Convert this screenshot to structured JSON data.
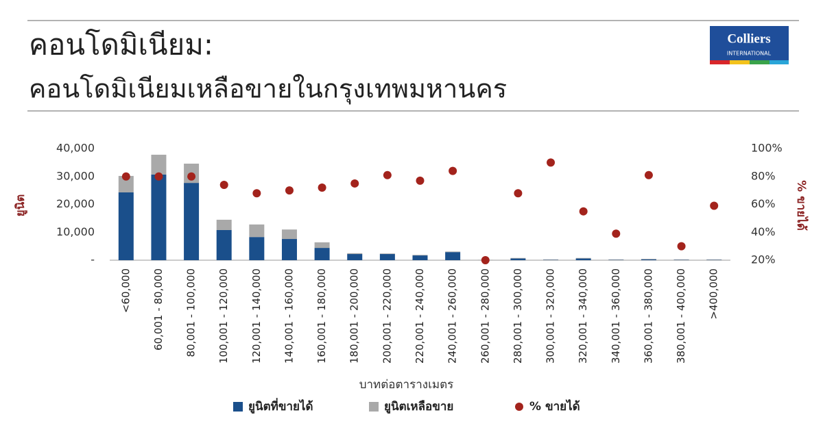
{
  "title": "คอนโดมิเนียม:",
  "subtitle": "คอนโดมิเนียมเหลือขายในกรุงเทพมหานคร",
  "logo": {
    "name": "Colliers",
    "sub": "INTERNATIONAL"
  },
  "chart_data": {
    "type": "bar",
    "stacked": true,
    "xlabel": "บาทต่อตารางเมตร",
    "ylabel": "ยูนิต",
    "y2label": "% ขายได้",
    "categories": [
      "<60,000",
      "60,001 - 80,000",
      "80,001 - 100,000",
      "100,001 - 120,000",
      "120,001 - 140,000",
      "140,001 - 160,000",
      "160,001 - 180,000",
      "180,001 - 200,000",
      "200,001 - 220,000",
      "220,001 - 240,000",
      "240,001 - 260,000",
      "260,001 - 280,000",
      "280,001 - 300,000",
      "300,001 - 320,000",
      "320,001 - 340,000",
      "340,001 - 360,000",
      "360,001 - 380,000",
      "380,001 - 400,000",
      ">400,000"
    ],
    "series": [
      {
        "name": "ยูนิตที่ขายได้",
        "color": "#1a4f8b",
        "values": [
          24300,
          30700,
          27700,
          10800,
          8300,
          7600,
          4400,
          2200,
          2200,
          1700,
          2900,
          0,
          600,
          100,
          600,
          100,
          300,
          100,
          100
        ]
      },
      {
        "name": "ยูนิตเหลือขาย",
        "color": "#a9a9a9",
        "values": [
          5900,
          7100,
          6900,
          3700,
          4500,
          3400,
          2000,
          300,
          200,
          200,
          200,
          100,
          200,
          200,
          200,
          200,
          200,
          200,
          200
        ]
      },
      {
        "name": "% ขายได้",
        "color": "#a3231c",
        "type": "scatter",
        "axis": "y2",
        "values": [
          80,
          80,
          80,
          74,
          68,
          70,
          72,
          75,
          81,
          77,
          84,
          20,
          68,
          90,
          55,
          39,
          81,
          30,
          59
        ]
      }
    ],
    "ylim": [
      0,
      40000
    ],
    "yticks": [
      {
        "value": 0,
        "label": "-"
      },
      {
        "value": 10000,
        "label": "10,000"
      },
      {
        "value": 20000,
        "label": "20,000"
      },
      {
        "value": 30000,
        "label": "30,000"
      },
      {
        "value": 40000,
        "label": "40,000"
      }
    ],
    "y2lim": [
      20,
      100
    ],
    "y2ticks": [
      {
        "value": 20,
        "label": "20%"
      },
      {
        "value": 40,
        "label": "40%"
      },
      {
        "value": 60,
        "label": "60%"
      },
      {
        "value": 80,
        "label": "80%"
      },
      {
        "value": 100,
        "label": "100%"
      }
    ],
    "grid": false,
    "legend": "bottom"
  }
}
